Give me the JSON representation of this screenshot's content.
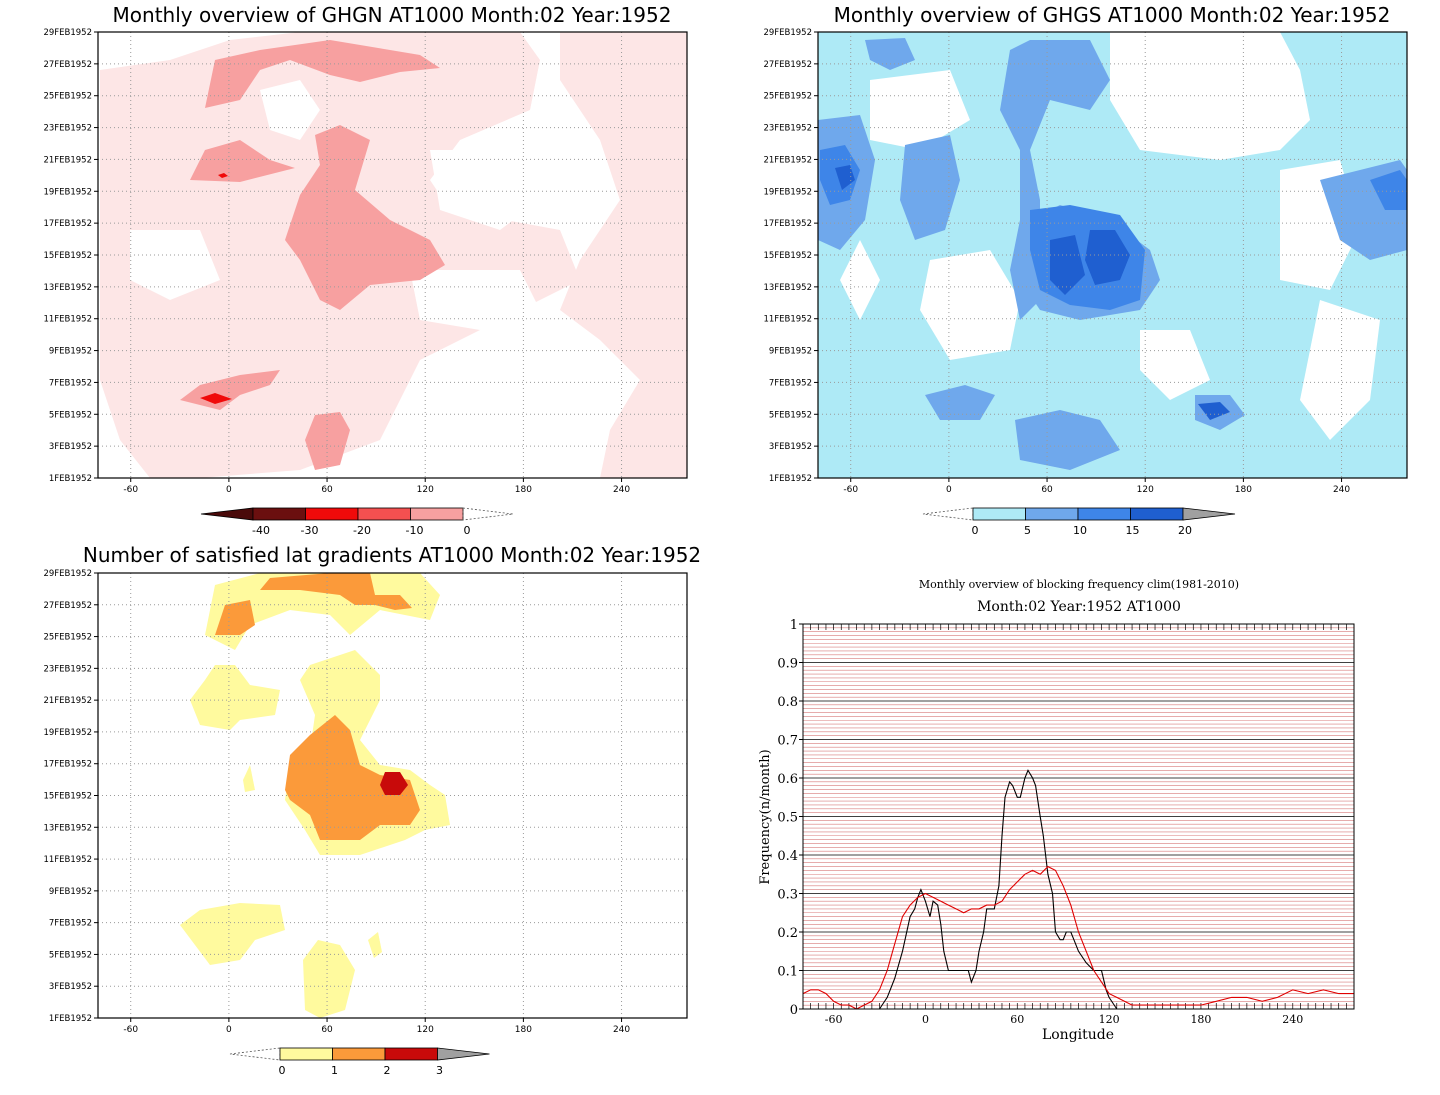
{
  "chart_data": [
    {
      "type": "heatmap",
      "title": "Monthly overview of GHGN AT1000 Month:02 Year:1952",
      "xlabel": "",
      "ylabel": "",
      "x_ticks": [
        "-60",
        "0",
        "60",
        "120",
        "180",
        "240"
      ],
      "y_ticks": [
        "1FEB1952",
        "3FEB1952",
        "5FEB1952",
        "7FEB1952",
        "9FEB1952",
        "11FEB1952",
        "13FEB1952",
        "15FEB1952",
        "17FEB1952",
        "19FEB1952",
        "21FEB1952",
        "23FEB1952",
        "25FEB1952",
        "27FEB1952",
        "29FEB1952"
      ],
      "xlim": [
        -80,
        280
      ],
      "ylim": [
        "1FEB1952",
        "29FEB1952"
      ],
      "grid": true,
      "colorbar": {
        "labels": [
          "-40",
          "-30",
          "-20",
          "-10",
          "0"
        ],
        "colors": [
          "#6b0f0f",
          "#f00a0a",
          "#f45050",
          "#f7a0a0",
          "#fde6e6"
        ]
      }
    },
    {
      "type": "heatmap",
      "title": "Monthly overview of GHGS AT1000 Month:02 Year:1952",
      "xlabel": "",
      "ylabel": "",
      "x_ticks": [
        "-60",
        "0",
        "60",
        "120",
        "180",
        "240"
      ],
      "y_ticks": [
        "1FEB1952",
        "3FEB1952",
        "5FEB1952",
        "7FEB1952",
        "9FEB1952",
        "11FEB1952",
        "13FEB1952",
        "15FEB1952",
        "17FEB1952",
        "19FEB1952",
        "21FEB1952",
        "23FEB1952",
        "25FEB1952",
        "27FEB1952",
        "29FEB1952"
      ],
      "xlim": [
        -80,
        280
      ],
      "ylim": [
        "1FEB1952",
        "29FEB1952"
      ],
      "grid": true,
      "colorbar": {
        "labels": [
          "0",
          "5",
          "10",
          "15",
          "20"
        ],
        "colors": [
          "#aeeaf6",
          "#6fa8ec",
          "#3e85e8",
          "#1f5fd0",
          "#a0a0a0"
        ]
      }
    },
    {
      "type": "heatmap",
      "title": "Number of satisfied lat gradients AT1000 Month:02 Year:1952",
      "xlabel": "",
      "ylabel": "",
      "x_ticks": [
        "-60",
        "0",
        "60",
        "120",
        "180",
        "240"
      ],
      "y_ticks": [
        "1FEB1952",
        "3FEB1952",
        "5FEB1952",
        "7FEB1952",
        "9FEB1952",
        "11FEB1952",
        "13FEB1952",
        "15FEB1952",
        "17FEB1952",
        "19FEB1952",
        "21FEB1952",
        "23FEB1952",
        "25FEB1952",
        "27FEB1952",
        "29FEB1952"
      ],
      "xlim": [
        -80,
        280
      ],
      "ylim": [
        "1FEB1952",
        "29FEB1952"
      ],
      "grid": true,
      "colorbar": {
        "labels": [
          "0",
          "1",
          "2",
          "3"
        ],
        "colors": [
          "#fffa9e",
          "#fb9a3a",
          "#c80a0a",
          "#a0a0a0"
        ]
      }
    },
    {
      "type": "line",
      "title": "Monthly overview of blocking frequency clim(1981-2010)",
      "subtitle": "Month:02 Year:1952  AT1000",
      "xlabel": "Longitude",
      "ylabel": "Frequency(n/month)",
      "xlim": [
        -80,
        280
      ],
      "ylim": [
        0,
        1
      ],
      "x_ticks": [
        "-60",
        "0",
        "60",
        "120",
        "180",
        "240"
      ],
      "y_ticks": [
        "0",
        "0.1",
        "0.2",
        "0.3",
        "0.4",
        "0.5",
        "0.6",
        "0.7",
        "0.8",
        "0.9",
        "1"
      ],
      "grid": true,
      "series": [
        {
          "color": "#000000",
          "x": [
            -80,
            -30,
            -25,
            -20,
            -15,
            -10,
            -7,
            -5,
            -3,
            0,
            3,
            5,
            8,
            10,
            12,
            15,
            20,
            25,
            28,
            30,
            33,
            35,
            38,
            40,
            45,
            48,
            50,
            52,
            55,
            57,
            60,
            62,
            65,
            67,
            70,
            72,
            75,
            77,
            80,
            83,
            85,
            88,
            90,
            92,
            95,
            97,
            100,
            105,
            110,
            115,
            118,
            120,
            125,
            128,
            130,
            280
          ],
          "y": [
            0,
            0,
            0.03,
            0.08,
            0.15,
            0.24,
            0.26,
            0.29,
            0.31,
            0.28,
            0.24,
            0.28,
            0.27,
            0.22,
            0.15,
            0.1,
            0.1,
            0.1,
            0.1,
            0.07,
            0.1,
            0.15,
            0.2,
            0.26,
            0.26,
            0.32,
            0.45,
            0.55,
            0.59,
            0.58,
            0.55,
            0.55,
            0.6,
            0.62,
            0.6,
            0.58,
            0.5,
            0.45,
            0.35,
            0.3,
            0.2,
            0.18,
            0.18,
            0.2,
            0.2,
            0.18,
            0.15,
            0.12,
            0.1,
            0.1,
            0.05,
            0.03,
            0,
            0,
            0,
            0
          ]
        },
        {
          "color": "#e00000",
          "x": [
            -80,
            -75,
            -70,
            -65,
            -60,
            -55,
            -50,
            -45,
            -40,
            -35,
            -30,
            -25,
            -20,
            -15,
            -10,
            -5,
            0,
            5,
            10,
            15,
            20,
            25,
            30,
            35,
            40,
            45,
            50,
            55,
            60,
            65,
            70,
            75,
            80,
            85,
            90,
            95,
            100,
            105,
            110,
            115,
            120,
            125,
            130,
            135,
            140,
            145,
            150,
            160,
            170,
            180,
            190,
            200,
            210,
            220,
            230,
            240,
            250,
            260,
            270,
            280
          ],
          "y": [
            0.04,
            0.05,
            0.05,
            0.04,
            0.02,
            0.01,
            0.01,
            0.0,
            0.01,
            0.02,
            0.05,
            0.1,
            0.17,
            0.24,
            0.27,
            0.29,
            0.3,
            0.29,
            0.28,
            0.27,
            0.26,
            0.25,
            0.26,
            0.26,
            0.27,
            0.27,
            0.28,
            0.31,
            0.33,
            0.35,
            0.36,
            0.35,
            0.37,
            0.36,
            0.32,
            0.27,
            0.2,
            0.15,
            0.1,
            0.07,
            0.04,
            0.03,
            0.02,
            0.01,
            0.01,
            0.01,
            0.01,
            0.01,
            0.01,
            0.01,
            0.02,
            0.03,
            0.03,
            0.02,
            0.03,
            0.05,
            0.04,
            0.05,
            0.04,
            0.04
          ]
        }
      ]
    }
  ]
}
